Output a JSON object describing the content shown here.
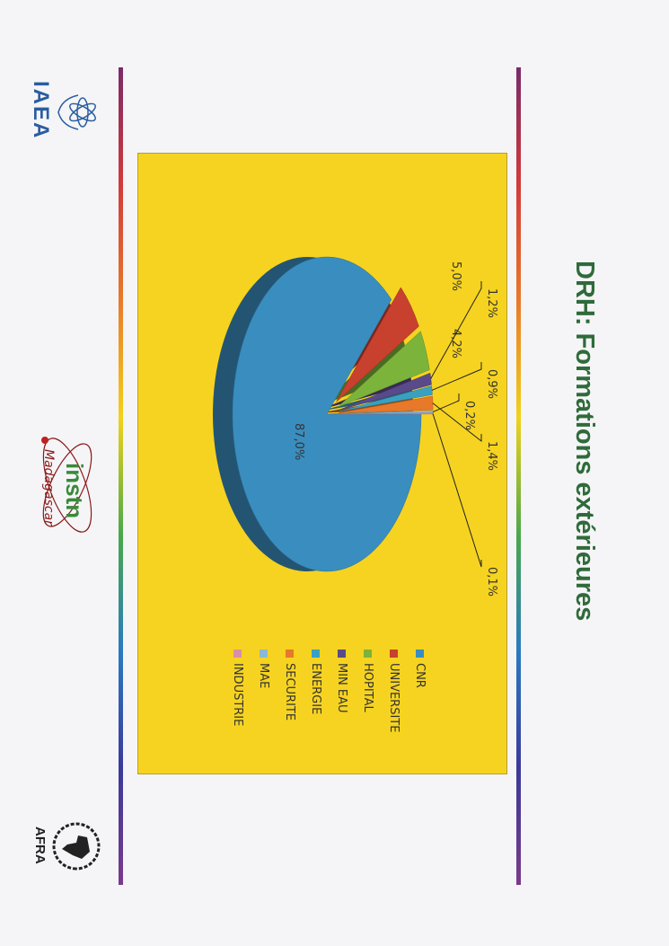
{
  "title": "DRH: Formations extérieures",
  "logos": {
    "left": "IAEA",
    "center_top": "instn",
    "center_bottom": "Madagascar",
    "right": "AFRA"
  },
  "chart_data": {
    "type": "pie",
    "title": "",
    "three_d": true,
    "legend_position": "right",
    "categories": [
      "CNR",
      "UNIVERSITE",
      "HOPITAL",
      "MIN EAU",
      "ENERGIE",
      "SECURITE",
      "MAE",
      "INDUSTRIE"
    ],
    "values": [
      87.0,
      5.0,
      4.2,
      1.2,
      0.9,
      1.4,
      0.2,
      0.1
    ],
    "data_labels": [
      "87,0%",
      "5,0%",
      "4,2%",
      "1,2%",
      "0,9%",
      "1,4%",
      "0,2%",
      "0,1%"
    ],
    "colors": [
      "#3a8dbf",
      "#c8402e",
      "#7cb33a",
      "#5a4a8a",
      "#3aa0c0",
      "#e8782a",
      "#8ab8d8",
      "#d890a8"
    ],
    "background": "#f6d320"
  }
}
